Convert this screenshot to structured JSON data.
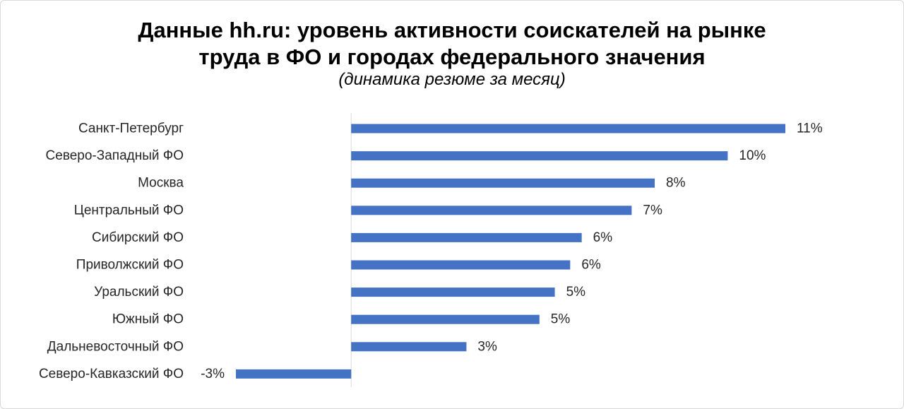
{
  "chart_data": {
    "type": "bar",
    "orientation": "horizontal",
    "title_line_1": "Данные hh.ru: уровень активности соискателей на рынке",
    "title_line_2": "труда в ФО и городах федерального значения",
    "subtitle": "(динамика резюме за месяц)",
    "categories": [
      "Санкт-Петербург",
      "Северо-Западный ФО",
      "Москва",
      "Центральный ФО",
      "Сибирский ФО",
      "Приволжский ФО",
      "Уральский ФО",
      "Южный ФО",
      "Дальневосточный ФО",
      "Северо-Кавказский ФО"
    ],
    "values": [
      11.3,
      9.8,
      7.9,
      7.3,
      6.0,
      5.7,
      5.3,
      4.9,
      3.0,
      -3.0
    ],
    "value_labels": [
      "11%",
      "10%",
      "8%",
      "7%",
      "6%",
      "6%",
      "5%",
      "5%",
      "3%",
      "-3%"
    ],
    "xlim": [
      -3.0,
      11.3
    ],
    "grid": false,
    "legend": "none",
    "bar_color": "#4472c4",
    "axis_color": "#d9d9d9"
  }
}
